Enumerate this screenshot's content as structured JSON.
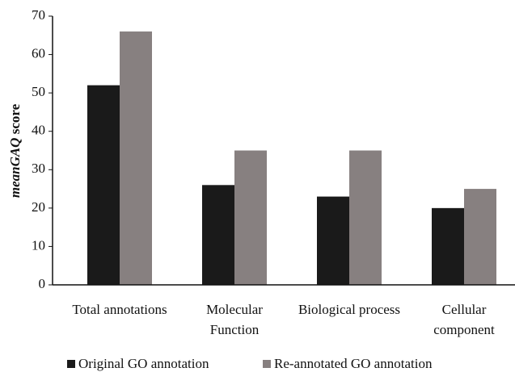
{
  "chart_data": {
    "type": "bar",
    "ylabel": {
      "italic": "meanGAQ",
      "plain": "score"
    },
    "categories": [
      "Total annotations",
      "Molecular Function",
      "Biological process",
      "Cellular component"
    ],
    "series": [
      {
        "name": "Original GO annotation",
        "color": "#1a1a1a",
        "values": [
          52,
          26,
          23,
          20
        ]
      },
      {
        "name": "Re-annotated GO annotation",
        "color": "#878080",
        "values": [
          66,
          35,
          35,
          25
        ]
      }
    ],
    "ylim": [
      0,
      70
    ],
    "yticks": [
      0,
      10,
      20,
      30,
      40,
      50,
      60,
      70
    ],
    "grid": false,
    "legend": "bottom"
  }
}
